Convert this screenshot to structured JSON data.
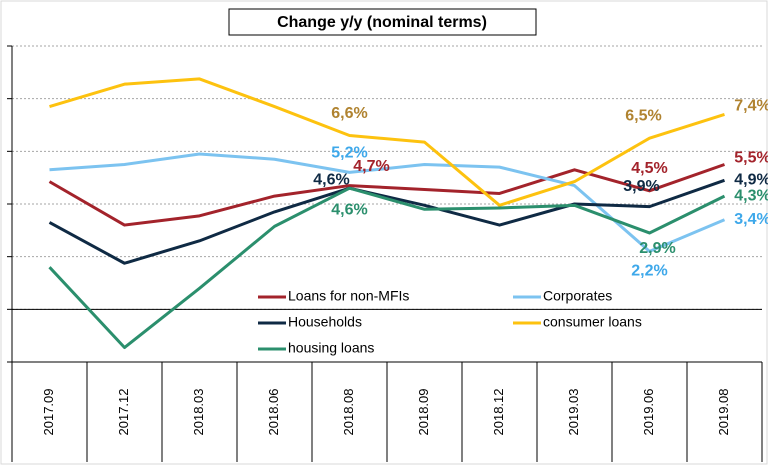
{
  "chart_data": {
    "type": "line",
    "title": "Change y/y (nominal terms)",
    "categories": [
      "2017.09",
      "2017.12",
      "2018.03",
      "2018.06",
      "2018.08",
      "2018.09",
      "2018.12",
      "2019.03",
      "2019.06",
      "2019.08"
    ],
    "ylim": [
      -2,
      10
    ],
    "yticks": [
      -2,
      0,
      2,
      4,
      6,
      8,
      10
    ],
    "grid": true,
    "legend": "bottom",
    "series": [
      {
        "name": "Loans for non-MFIs",
        "color": "#a3232b",
        "label_color": "#a3232b",
        "values": [
          4.85,
          3.2,
          3.55,
          4.3,
          4.7,
          4.55,
          4.4,
          5.3,
          4.5,
          5.5
        ],
        "value_labels": [
          null,
          null,
          null,
          null,
          "4,7%",
          null,
          null,
          null,
          "4,5%",
          "5,5%"
        ]
      },
      {
        "name": "Corporates",
        "color": "#7cc3f0",
        "label_color": "#3ea8ea",
        "values": [
          5.3,
          5.5,
          5.9,
          5.7,
          5.2,
          5.5,
          5.4,
          4.7,
          2.2,
          3.4
        ],
        "value_labels": [
          null,
          null,
          null,
          null,
          "5,2%",
          null,
          null,
          null,
          "2,2%",
          "3,4%"
        ]
      },
      {
        "name": "Households",
        "color": "#0f2a44",
        "label_color": "#0f2a44",
        "values": [
          3.3,
          1.75,
          2.6,
          3.7,
          4.6,
          3.95,
          3.2,
          4.0,
          3.9,
          4.9
        ],
        "value_labels": [
          null,
          null,
          null,
          null,
          "4,6%",
          null,
          null,
          null,
          "3,9%",
          "4,9%"
        ]
      },
      {
        "name": "consumer loans",
        "color": "#fdc20f",
        "label_color": "#b08330",
        "values": [
          7.7,
          8.55,
          8.75,
          7.7,
          6.6,
          6.35,
          3.95,
          4.85,
          6.5,
          7.4
        ],
        "value_labels": [
          null,
          null,
          null,
          null,
          "6,6%",
          null,
          null,
          null,
          "6,5%",
          "7,4%"
        ]
      },
      {
        "name": "housing loans",
        "color": "#2b8f6d",
        "label_color": "#2b8f6d",
        "values": [
          1.6,
          -1.45,
          0.8,
          3.15,
          4.6,
          3.8,
          3.85,
          3.95,
          2.9,
          4.3
        ],
        "value_labels": [
          null,
          null,
          null,
          null,
          "4,6%",
          null,
          null,
          null,
          "2,9%",
          "4,3%"
        ]
      }
    ]
  }
}
